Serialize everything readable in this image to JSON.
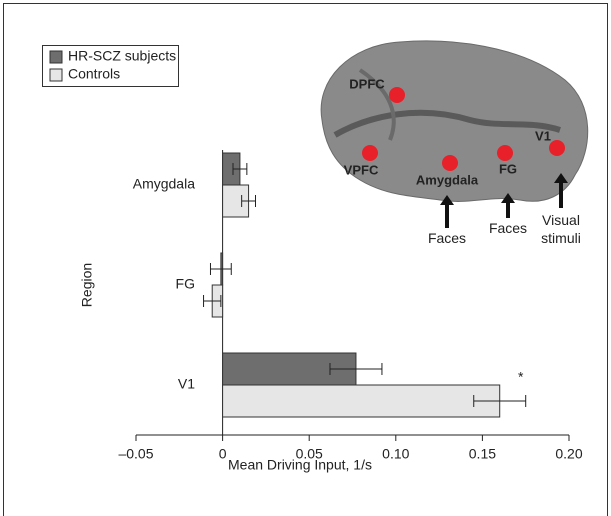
{
  "chart_data": {
    "type": "hbar",
    "categories": [
      "Amygdala",
      "FG",
      "V1"
    ],
    "series": [
      {
        "name": "HR-SCZ subjects",
        "color": "#6e6e6e",
        "values": [
          0.01,
          -0.001,
          0.077
        ],
        "errors": [
          0.004,
          0.006,
          0.015
        ]
      },
      {
        "name": "Controls",
        "color": "#e6e6e6",
        "values": [
          0.015,
          -0.006,
          0.16
        ],
        "errors": [
          0.004,
          0.005,
          0.015
        ]
      }
    ],
    "xlim": [
      -0.05,
      0.2
    ],
    "xticks": [
      {
        "value": -0.05,
        "label": "–0.05"
      },
      0,
      0.05,
      {
        "value": 0.1,
        "label": "0.10"
      },
      0.15,
      {
        "value": 0.2,
        "label": "0.20"
      }
    ],
    "xlabel": "Mean Driving Input, 1/s",
    "ylabel": "Region",
    "legend": "top-left",
    "significance": "*",
    "brain_labels": [
      "DPFC",
      "VPFC",
      "Amygdala",
      "FG",
      "V1"
    ],
    "stimulus_labels": [
      "Faces",
      "Faces",
      "Visual stimuli"
    ]
  }
}
